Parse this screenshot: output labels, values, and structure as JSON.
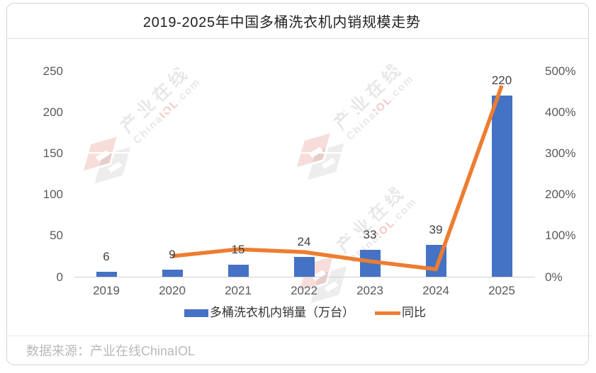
{
  "title": "2019-2025年中国多桶洗衣机内销规模走势",
  "chart_data": {
    "type": "bar+line",
    "title": "2019-2025年中国多桶洗衣机内销规模走势",
    "categories": [
      "2019",
      "2020",
      "2021",
      "2022",
      "2023",
      "2024",
      "2025"
    ],
    "series": [
      {
        "name": "多桶洗衣机内销量（万台）",
        "type": "bar",
        "values": [
          6,
          9,
          15,
          24,
          33,
          39,
          220
        ],
        "color": "#4472c4"
      },
      {
        "name": "同比",
        "type": "line",
        "values_percent": [
          null,
          50,
          66.7,
          60,
          37.5,
          18.2,
          464.1
        ],
        "color": "#ed7d31"
      }
    ],
    "left_axis": {
      "ticks": [
        "0",
        "50",
        "100",
        "150",
        "200",
        "250"
      ],
      "min": 0,
      "max": 250
    },
    "right_axis": {
      "ticks": [
        "0%",
        "100%",
        "200%",
        "300%",
        "400%",
        "500%"
      ],
      "min_percent": 0,
      "max_percent": 500
    },
    "grid": "horizontal-faint",
    "legend_position": "bottom-center",
    "legend": [
      "多桶洗衣机内销量（万台）",
      "同比"
    ]
  },
  "legend": {
    "bar_label": "多桶洗衣机内销量（万台）",
    "line_label": "同比"
  },
  "footer": {
    "source_text": "数据来源：产业在线ChinaIOL"
  },
  "watermark": {
    "main_text": "产业在线",
    "sub_prefix": "China",
    "sub_accent": "IOL",
    "sub_suffix": ".com"
  },
  "colors": {
    "bar": "#4472c4",
    "line": "#ed7d31",
    "axis_text": "#595959",
    "value_label_text": "#404040",
    "title_text": "#222222",
    "footer_text": "#b5b5b5",
    "card_border": "#d9d9d9"
  }
}
